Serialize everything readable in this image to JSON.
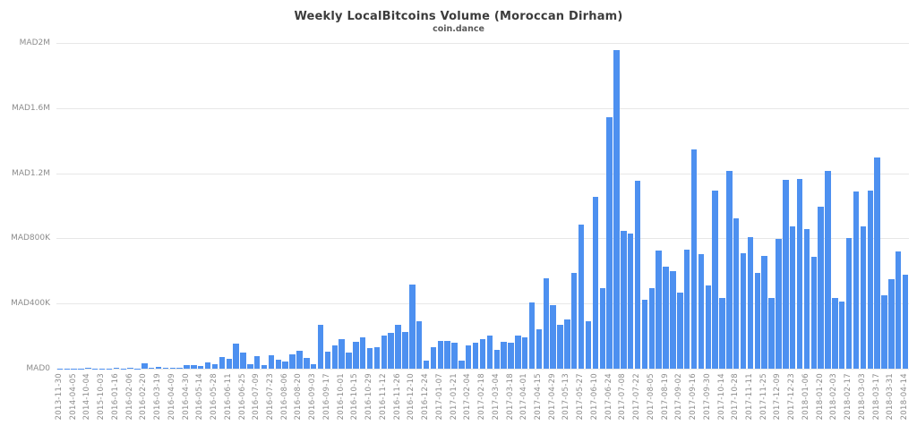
{
  "chart_data": {
    "type": "bar",
    "title": "Weekly LocalBitcoins Volume (Moroccan Dirham)",
    "subtitle": "coin.dance",
    "xlabel": "",
    "ylabel": "",
    "currency_prefix": "MAD",
    "ylim": [
      0,
      2000000
    ],
    "grid": "horizontal",
    "legend": "none",
    "bar_color": "#4d90f0",
    "gridline_color": "#e7e7e7",
    "axis_label_color": "#8c8c8c",
    "y_tick_labels_top_to_bottom": [
      "MAD2M",
      "MAD1.6M",
      "MAD1.2M",
      "MAD800K",
      "MAD400K",
      "MAD0"
    ],
    "y_tick_values_top_to_bottom": [
      2000000,
      1600000,
      1200000,
      800000,
      400000,
      0
    ],
    "label_every_n_bars": 2,
    "x_tick_labels": [
      "2013-11-30",
      "2014-04-05",
      "2014-10-04",
      "2015-10-03",
      "2016-01-16",
      "2016-02-06",
      "2016-02-20",
      "2016-03-19",
      "2016-04-09",
      "2016-04-30",
      "2016-05-14",
      "2016-05-28",
      "2016-06-11",
      "2016-06-25",
      "2016-07-09",
      "2016-07-23",
      "2016-08-06",
      "2016-08-20",
      "2016-09-03",
      "2016-09-17",
      "2016-10-01",
      "2016-10-15",
      "2016-10-29",
      "2016-11-12",
      "2016-11-26",
      "2016-12-10",
      "2016-12-24",
      "2017-01-07",
      "2017-01-21",
      "2017-02-04",
      "2017-02-18",
      "2017-03-04",
      "2017-03-18",
      "2017-04-01",
      "2017-04-15",
      "2017-04-29",
      "2017-05-13",
      "2017-05-27",
      "2017-06-10",
      "2017-06-24",
      "2017-07-08",
      "2017-07-22",
      "2017-08-05",
      "2017-08-19",
      "2017-09-02",
      "2017-09-16",
      "2017-09-30",
      "2017-10-14",
      "2017-10-28",
      "2017-11-11",
      "2017-11-25",
      "2017-12-09",
      "2017-12-23",
      "2018-01-06",
      "2018-01-20",
      "2018-02-03",
      "2018-02-17",
      "2018-03-03",
      "2018-03-17",
      "2018-03-31",
      "2018-04-14"
    ],
    "values": [
      2000,
      1000,
      2000,
      1000,
      3000,
      1000,
      2000,
      1000,
      3000,
      2000,
      6000,
      2000,
      33000,
      3000,
      9000,
      5000,
      4000,
      6000,
      21000,
      24000,
      17000,
      39000,
      29000,
      72000,
      60000,
      156000,
      101000,
      29000,
      79000,
      20000,
      82000,
      57000,
      46000,
      90000,
      110000,
      65000,
      26000,
      268000,
      106000,
      143000,
      180000,
      99000,
      165000,
      194000,
      125000,
      132000,
      202000,
      220000,
      271000,
      227000,
      515000,
      293000,
      48000,
      132000,
      169000,
      169000,
      161000,
      51000,
      143000,
      158000,
      180000,
      205000,
      114000,
      165000,
      161000,
      202000,
      191000,
      405000,
      240000,
      555000,
      390000,
      270000,
      304000,
      588000,
      882000,
      290000,
      1056000,
      497000,
      1546000,
      1954000,
      845000,
      832000,
      1153000,
      424000,
      497000,
      726000,
      625000,
      598000,
      466000,
      730000,
      1345000,
      704000,
      510000,
      1096000,
      436000,
      1217000,
      924000,
      711000,
      808000,
      588000,
      693000,
      436000,
      799000,
      1162000,
      876000,
      1166000,
      858000,
      689000,
      992000,
      1216000,
      433000,
      411000,
      805000,
      1089000,
      876000,
      1096000,
      1298000,
      451000,
      552000,
      722000,
      576000
    ]
  }
}
